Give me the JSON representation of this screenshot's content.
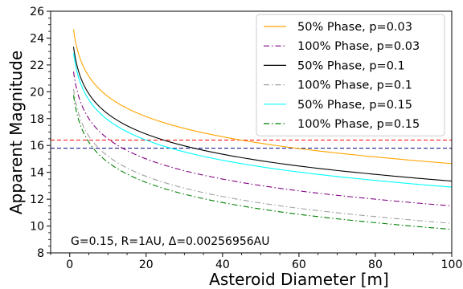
{
  "chart_data": {
    "type": "line",
    "title": "",
    "xlabel": "Asteroid Diameter [m]",
    "ylabel": "Apparent Magnitude",
    "xlim": [
      -5,
      100
    ],
    "ylim": [
      8,
      26
    ],
    "xticks": [
      0,
      20,
      40,
      60,
      80,
      100
    ],
    "yticks": [
      8,
      10,
      12,
      14,
      16,
      18,
      20,
      22,
      24,
      26
    ],
    "grid": false,
    "legend_position": "top-right",
    "annotation": "G=0.15, R=1AU, Δ=0.00256956AU",
    "x": [
      1,
      5,
      10,
      20,
      40,
      60,
      80,
      100
    ],
    "series": [
      {
        "name": "50% Phase, p=0.03",
        "color": "#ffa500",
        "style": "solid",
        "values": [
          24.65,
          21.15,
          19.65,
          18.15,
          16.65,
          15.77,
          15.15,
          14.65
        ]
      },
      {
        "name": "100% Phase, p=0.03",
        "color": "#800080",
        "style": "dashdot",
        "values": [
          21.5,
          18.0,
          16.5,
          15.0,
          13.5,
          12.62,
          12.0,
          11.5
        ]
      },
      {
        "name": "50% Phase, p=0.1",
        "color": "#000000",
        "style": "solid",
        "values": [
          23.35,
          19.85,
          18.35,
          16.85,
          15.35,
          14.47,
          13.85,
          13.35
        ]
      },
      {
        "name": "100% Phase, p=0.1",
        "color": "#a0a0a0",
        "style": "dashdot",
        "values": [
          20.2,
          16.7,
          15.2,
          13.7,
          12.2,
          11.32,
          10.7,
          10.2
        ]
      },
      {
        "name": "50% Phase, p=0.15",
        "color": "#00ffff",
        "style": "solid",
        "values": [
          22.9,
          19.4,
          17.9,
          16.4,
          14.9,
          14.02,
          13.4,
          12.9
        ]
      },
      {
        "name": "100% Phase, p=0.15",
        "color": "#008000",
        "style": "dashdot",
        "values": [
          19.75,
          16.25,
          14.75,
          13.25,
          11.75,
          10.87,
          10.25,
          9.75
        ]
      }
    ],
    "reference_lines": [
      {
        "y": 16.4,
        "color": "#ff0000",
        "style": "dashed"
      },
      {
        "y": 15.8,
        "color": "#000080",
        "style": "dashed"
      }
    ]
  }
}
